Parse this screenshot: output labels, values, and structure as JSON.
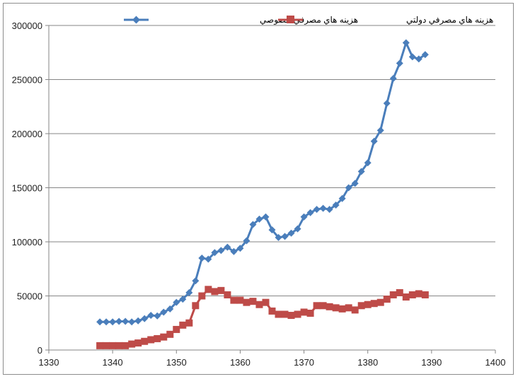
{
  "chart_data": {
    "type": "line",
    "title": "",
    "xlabel": "",
    "ylabel": "",
    "xlim": [
      1330,
      1400
    ],
    "ylim": [
      0,
      300000
    ],
    "xticks": [
      1330,
      1340,
      1350,
      1360,
      1370,
      1380,
      1390,
      1400
    ],
    "yticks": [
      0,
      50000,
      100000,
      150000,
      200000,
      250000,
      300000
    ],
    "grid": "horizontal",
    "legend": "top",
    "x": [
      1338,
      1339,
      1340,
      1341,
      1342,
      1343,
      1344,
      1345,
      1346,
      1347,
      1348,
      1349,
      1350,
      1351,
      1352,
      1353,
      1354,
      1355,
      1356,
      1357,
      1358,
      1359,
      1360,
      1361,
      1362,
      1363,
      1364,
      1365,
      1366,
      1367,
      1368,
      1369,
      1370,
      1371,
      1372,
      1373,
      1374,
      1375,
      1376,
      1377,
      1378,
      1379,
      1380,
      1381,
      1382,
      1383,
      1384,
      1385,
      1386,
      1387,
      1388,
      1389
    ],
    "series": [
      {
        "name": "هزینه هاي مصرفي خصوصي",
        "color": "#4a7ebb",
        "marker": "diamond",
        "values": [
          26000,
          26000,
          26000,
          26500,
          26500,
          26000,
          27000,
          29000,
          32000,
          31500,
          35000,
          38000,
          44000,
          47000,
          53000,
          64000,
          85000,
          84000,
          90000,
          92000,
          95000,
          91000,
          94000,
          101000,
          116000,
          121000,
          123000,
          111000,
          104000,
          105000,
          108000,
          112000,
          123000,
          127000,
          130000,
          131000,
          130000,
          134000,
          140000,
          150000,
          154000,
          165000,
          173000,
          193000,
          203000,
          228000,
          251000,
          265000,
          284000,
          271000,
          269000,
          273000
        ]
      },
      {
        "name": "هزینه هاي مصرفي دولتي",
        "color": "#be4b48",
        "marker": "square",
        "values": [
          4000,
          4000,
          4000,
          4000,
          4000,
          5500,
          6500,
          8000,
          9500,
          10500,
          12000,
          14500,
          19000,
          23000,
          25000,
          41000,
          50000,
          56000,
          54000,
          55000,
          51000,
          46000,
          46000,
          44000,
          45000,
          42000,
          44000,
          36000,
          33000,
          33000,
          32000,
          33000,
          35000,
          34000,
          41000,
          41000,
          40000,
          39000,
          38000,
          39000,
          37000,
          41000,
          42000,
          43000,
          44000,
          47000,
          51000,
          53000,
          49000,
          51000,
          52000,
          51000
        ]
      }
    ]
  }
}
